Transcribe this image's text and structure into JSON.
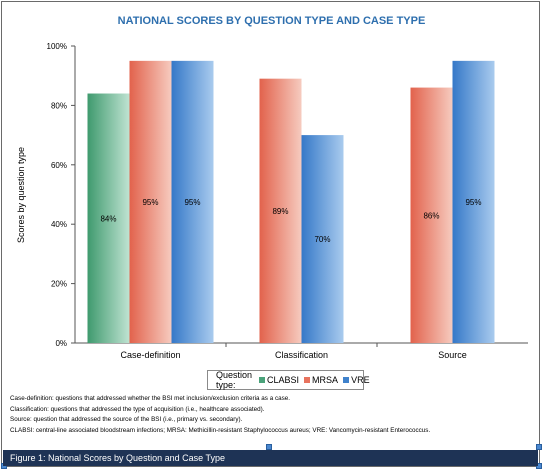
{
  "chart_data": {
    "type": "bar",
    "title": "NATIONAL SCORES BY QUESTION TYPE AND CASE TYPE",
    "xlabel": "",
    "ylabel": "Scores by question type",
    "ylim": [
      0,
      100
    ],
    "yticks": [
      "0%",
      "20%",
      "40%",
      "60%",
      "80%",
      "100%"
    ],
    "categories": [
      "Case-definition",
      "Classification",
      "Source"
    ],
    "series": [
      {
        "name": "CLABSI",
        "values": [
          84,
          null,
          null
        ],
        "labels": [
          "84%",
          "",
          ""
        ],
        "color": "#4aa27a"
      },
      {
        "name": "MRSA",
        "values": [
          95,
          89,
          86
        ],
        "labels": [
          "95%",
          "89%",
          "86%"
        ],
        "color": "#e8735e"
      },
      {
        "name": "VRE",
        "values": [
          95,
          70,
          95
        ],
        "labels": [
          "95%",
          "70%",
          "95%"
        ],
        "color": "#3f82cc"
      }
    ],
    "legend_title": "Question type:",
    "legend_position": "bottom",
    "grid": false
  },
  "notes": [
    "Case-definition: questions that addressed whether the BSI met inclusion/exclusion criteria as a case.",
    "Classification: questions that addressed the type of acquisition (i.e., healthcare associated).",
    "Source: question that addressed the source of the BSI (i.e., primary vs. secondary).",
    "CLABSI: central-line associated bloodstream infections; MRSA: Methicillin-resistant Staphylococcus aureus; VRE: Vancomycin-resistant Enterococcus."
  ],
  "caption": "Figure 1: National Scores by Question and Case Type"
}
